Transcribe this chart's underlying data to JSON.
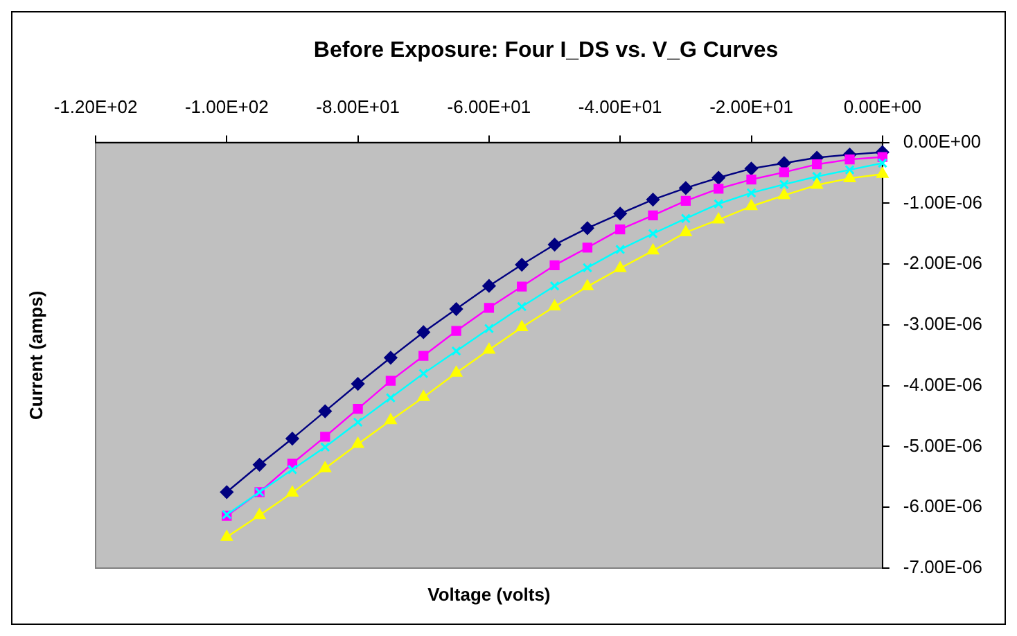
{
  "chart_data": {
    "type": "line",
    "title": "Before Exposure: Four I_DS vs. V_G Curves",
    "xlabel": "Voltage (volts)",
    "ylabel": "Current (amps)",
    "x": [
      -100,
      -95,
      -90,
      -85,
      -80,
      -75,
      -70,
      -65,
      -60,
      -55,
      -50,
      -45,
      -40,
      -35,
      -30,
      -25,
      -20,
      -15,
      -10,
      -5,
      0
    ],
    "series": [
      {
        "color": "#000080",
        "marker": "diamond",
        "values": [
          -5.75e-06,
          -5.3e-06,
          -4.87e-06,
          -4.42e-06,
          -3.97e-06,
          -3.54e-06,
          -3.12e-06,
          -2.74e-06,
          -2.36e-06,
          -2.01e-06,
          -1.68e-06,
          -1.41e-06,
          -1.17e-06,
          -9.4e-07,
          -7.5e-07,
          -5.8e-07,
          -4.3e-07,
          -3.4e-07,
          -2.5e-07,
          -2e-07,
          -1.6e-07
        ]
      },
      {
        "color": "#ff00ff",
        "marker": "square",
        "values": [
          -6.14e-06,
          -5.75e-06,
          -5.28e-06,
          -4.84e-06,
          -4.38e-06,
          -3.92e-06,
          -3.51e-06,
          -3.1e-06,
          -2.72e-06,
          -2.37e-06,
          -2.02e-06,
          -1.73e-06,
          -1.43e-06,
          -1.2e-06,
          -9.6e-07,
          -7.6e-07,
          -6.1e-07,
          -4.9e-07,
          -3.6e-07,
          -2.8e-07,
          -2.4e-07
        ]
      },
      {
        "color": "#00ffff",
        "marker": "cross",
        "values": [
          -6.12e-06,
          -5.75e-06,
          -5.38e-06,
          -5.01e-06,
          -4.6e-06,
          -4.2e-06,
          -3.8e-06,
          -3.43e-06,
          -3.06e-06,
          -2.7e-06,
          -2.36e-06,
          -2.06e-06,
          -1.76e-06,
          -1.5e-06,
          -1.25e-06,
          -1.01e-06,
          -8.3e-07,
          -6.9e-07,
          -5.6e-07,
          -4.5e-07,
          -3.4e-07
        ]
      },
      {
        "color": "#ffff00",
        "marker": "triangle",
        "values": [
          -6.49e-06,
          -6.13e-06,
          -5.76e-06,
          -5.36e-06,
          -4.96e-06,
          -4.57e-06,
          -4.19e-06,
          -3.79e-06,
          -3.41e-06,
          -3.04e-06,
          -2.7e-06,
          -2.37e-06,
          -2.07e-06,
          -1.78e-06,
          -1.48e-06,
          -1.27e-06,
          -1.05e-06,
          -8.7e-07,
          -7e-07,
          -5.9e-07,
          -5.2e-07
        ]
      }
    ],
    "xlim": [
      -120,
      0
    ],
    "xticks": [
      {
        "value": -120,
        "label": "-1.20E+02"
      },
      {
        "value": -100,
        "label": "-1.00E+02"
      },
      {
        "value": -80,
        "label": "-8.00E+01"
      },
      {
        "value": -60,
        "label": "-6.00E+01"
      },
      {
        "value": -40,
        "label": "-4.00E+01"
      },
      {
        "value": -20,
        "label": "-2.00E+01"
      },
      {
        "value": 0,
        "label": "0.00E+00"
      }
    ],
    "ylim": [
      -7e-06,
      0
    ],
    "yticks": [
      {
        "value": 0,
        "label": "0.00E+00"
      },
      {
        "value": -1e-06,
        "label": "-1.00E-06"
      },
      {
        "value": -2e-06,
        "label": "-2.00E-06"
      },
      {
        "value": -3e-06,
        "label": "-3.00E-06"
      },
      {
        "value": -4e-06,
        "label": "-4.00E-06"
      },
      {
        "value": -5e-06,
        "label": "-5.00E-06"
      },
      {
        "value": -6e-06,
        "label": "-6.00E-06"
      },
      {
        "value": -7e-06,
        "label": "-7.00E-06"
      }
    ],
    "grid": false,
    "legend": false,
    "line_style": "solid"
  }
}
